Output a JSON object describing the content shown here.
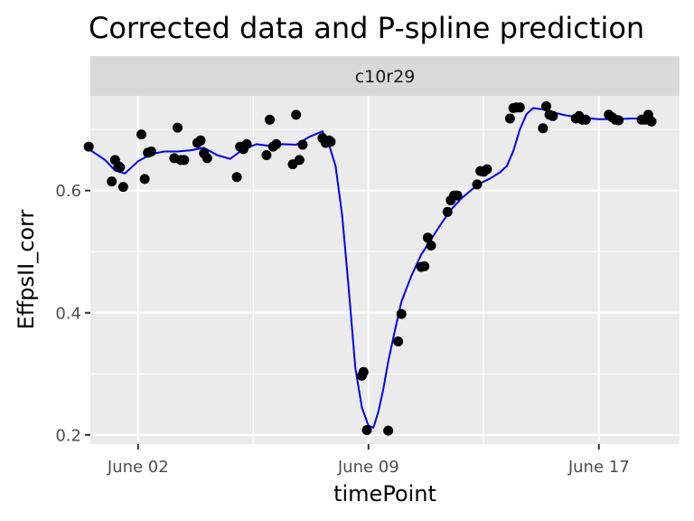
{
  "chart_data": {
    "type": "scatter",
    "title": "Corrected data and P-spline prediction",
    "facet_label": "c10r29",
    "xlabel": "timePoint",
    "ylabel": "EffpsII_corr",
    "x_ticks": [
      {
        "label": "June 02",
        "value": 2
      },
      {
        "label": "June 09",
        "value": 9
      },
      {
        "label": "June 17",
        "value": 16
      }
    ],
    "y_ticks": [
      0.2,
      0.4,
      0.6
    ],
    "xlim": [
      0.55,
      18.45
    ],
    "ylim": [
      0.185,
      0.755
    ],
    "grid": true,
    "legend": "none",
    "colors": {
      "panel": "#ebebeb",
      "strip": "#d9d9d9",
      "points": "#000000",
      "spline": "#0000ee",
      "grid": "#ffffff"
    },
    "series": [
      {
        "type": "points",
        "x": [
          0.5,
          1.2,
          1.3,
          1.4,
          1.45,
          1.55,
          2.1,
          2.2,
          2.3,
          2.4,
          3.1,
          3.2,
          3.3,
          3.4,
          3.8,
          3.9,
          4.0,
          4.1,
          5.0,
          5.1,
          5.2,
          5.3,
          5.9,
          6.0,
          6.1,
          6.2,
          6.7,
          6.8,
          6.9,
          7.0,
          7.6,
          7.7,
          7.8,
          7.85,
          8.8,
          8.85,
          8.95,
          9.6,
          9.9,
          10.0,
          10.6,
          10.7,
          10.8,
          10.9,
          11.4,
          11.5,
          11.6,
          11.7,
          12.3,
          12.4,
          12.5,
          12.6,
          13.3,
          13.4,
          13.5,
          13.6,
          14.3,
          14.4,
          14.5,
          14.6,
          15.3,
          15.4,
          15.5,
          15.6,
          16.3,
          16.4,
          16.5,
          16.6,
          17.3,
          17.4,
          17.5,
          17.6
        ],
        "y": [
          0.672,
          0.615,
          0.65,
          0.64,
          0.638,
          0.606,
          0.692,
          0.619,
          0.662,
          0.664,
          0.653,
          0.703,
          0.65,
          0.65,
          0.678,
          0.682,
          0.661,
          0.653,
          0.622,
          0.672,
          0.668,
          0.676,
          0.658,
          0.716,
          0.672,
          0.676,
          0.643,
          0.724,
          0.65,
          0.675,
          0.686,
          0.678,
          0.682,
          0.68,
          0.297,
          0.303,
          0.208,
          0.207,
          0.353,
          0.398,
          0.475,
          0.476,
          0.523,
          0.51,
          0.565,
          0.584,
          0.592,
          0.592,
          0.61,
          0.632,
          0.631,
          0.635,
          0.718,
          0.735,
          0.736,
          0.736,
          0.702,
          0.738,
          0.724,
          0.722,
          0.718,
          0.722,
          0.716,
          0.716,
          0.724,
          0.72,
          0.716,
          0.715,
          0.716,
          0.716,
          0.724,
          0.713
        ]
      },
      {
        "type": "line",
        "x": [
          0.5,
          1.0,
          1.3,
          1.6,
          2.0,
          2.4,
          2.8,
          3.2,
          3.6,
          4.0,
          4.4,
          4.8,
          5.2,
          5.6,
          6.0,
          6.4,
          6.8,
          7.2,
          7.6,
          7.8,
          8.0,
          8.2,
          8.4,
          8.6,
          8.8,
          9.0,
          9.15,
          9.3,
          9.45,
          9.6,
          9.8,
          10.0,
          10.3,
          10.6,
          10.9,
          11.2,
          11.5,
          11.8,
          12.1,
          12.4,
          12.7,
          13.0,
          13.2,
          13.4,
          13.6,
          13.8,
          14.0,
          14.3,
          14.6,
          15.0,
          15.5,
          16.0,
          16.5,
          17.0,
          17.5,
          17.65
        ],
        "y": [
          0.668,
          0.65,
          0.633,
          0.628,
          0.648,
          0.66,
          0.664,
          0.664,
          0.666,
          0.67,
          0.658,
          0.652,
          0.668,
          0.676,
          0.673,
          0.676,
          0.675,
          0.688,
          0.697,
          0.675,
          0.64,
          0.56,
          0.44,
          0.31,
          0.245,
          0.215,
          0.212,
          0.238,
          0.275,
          0.32,
          0.37,
          0.418,
          0.46,
          0.495,
          0.52,
          0.545,
          0.568,
          0.586,
          0.6,
          0.612,
          0.62,
          0.63,
          0.64,
          0.665,
          0.7,
          0.725,
          0.735,
          0.733,
          0.728,
          0.723,
          0.719,
          0.717,
          0.717,
          0.718,
          0.718,
          0.718
        ]
      }
    ]
  }
}
